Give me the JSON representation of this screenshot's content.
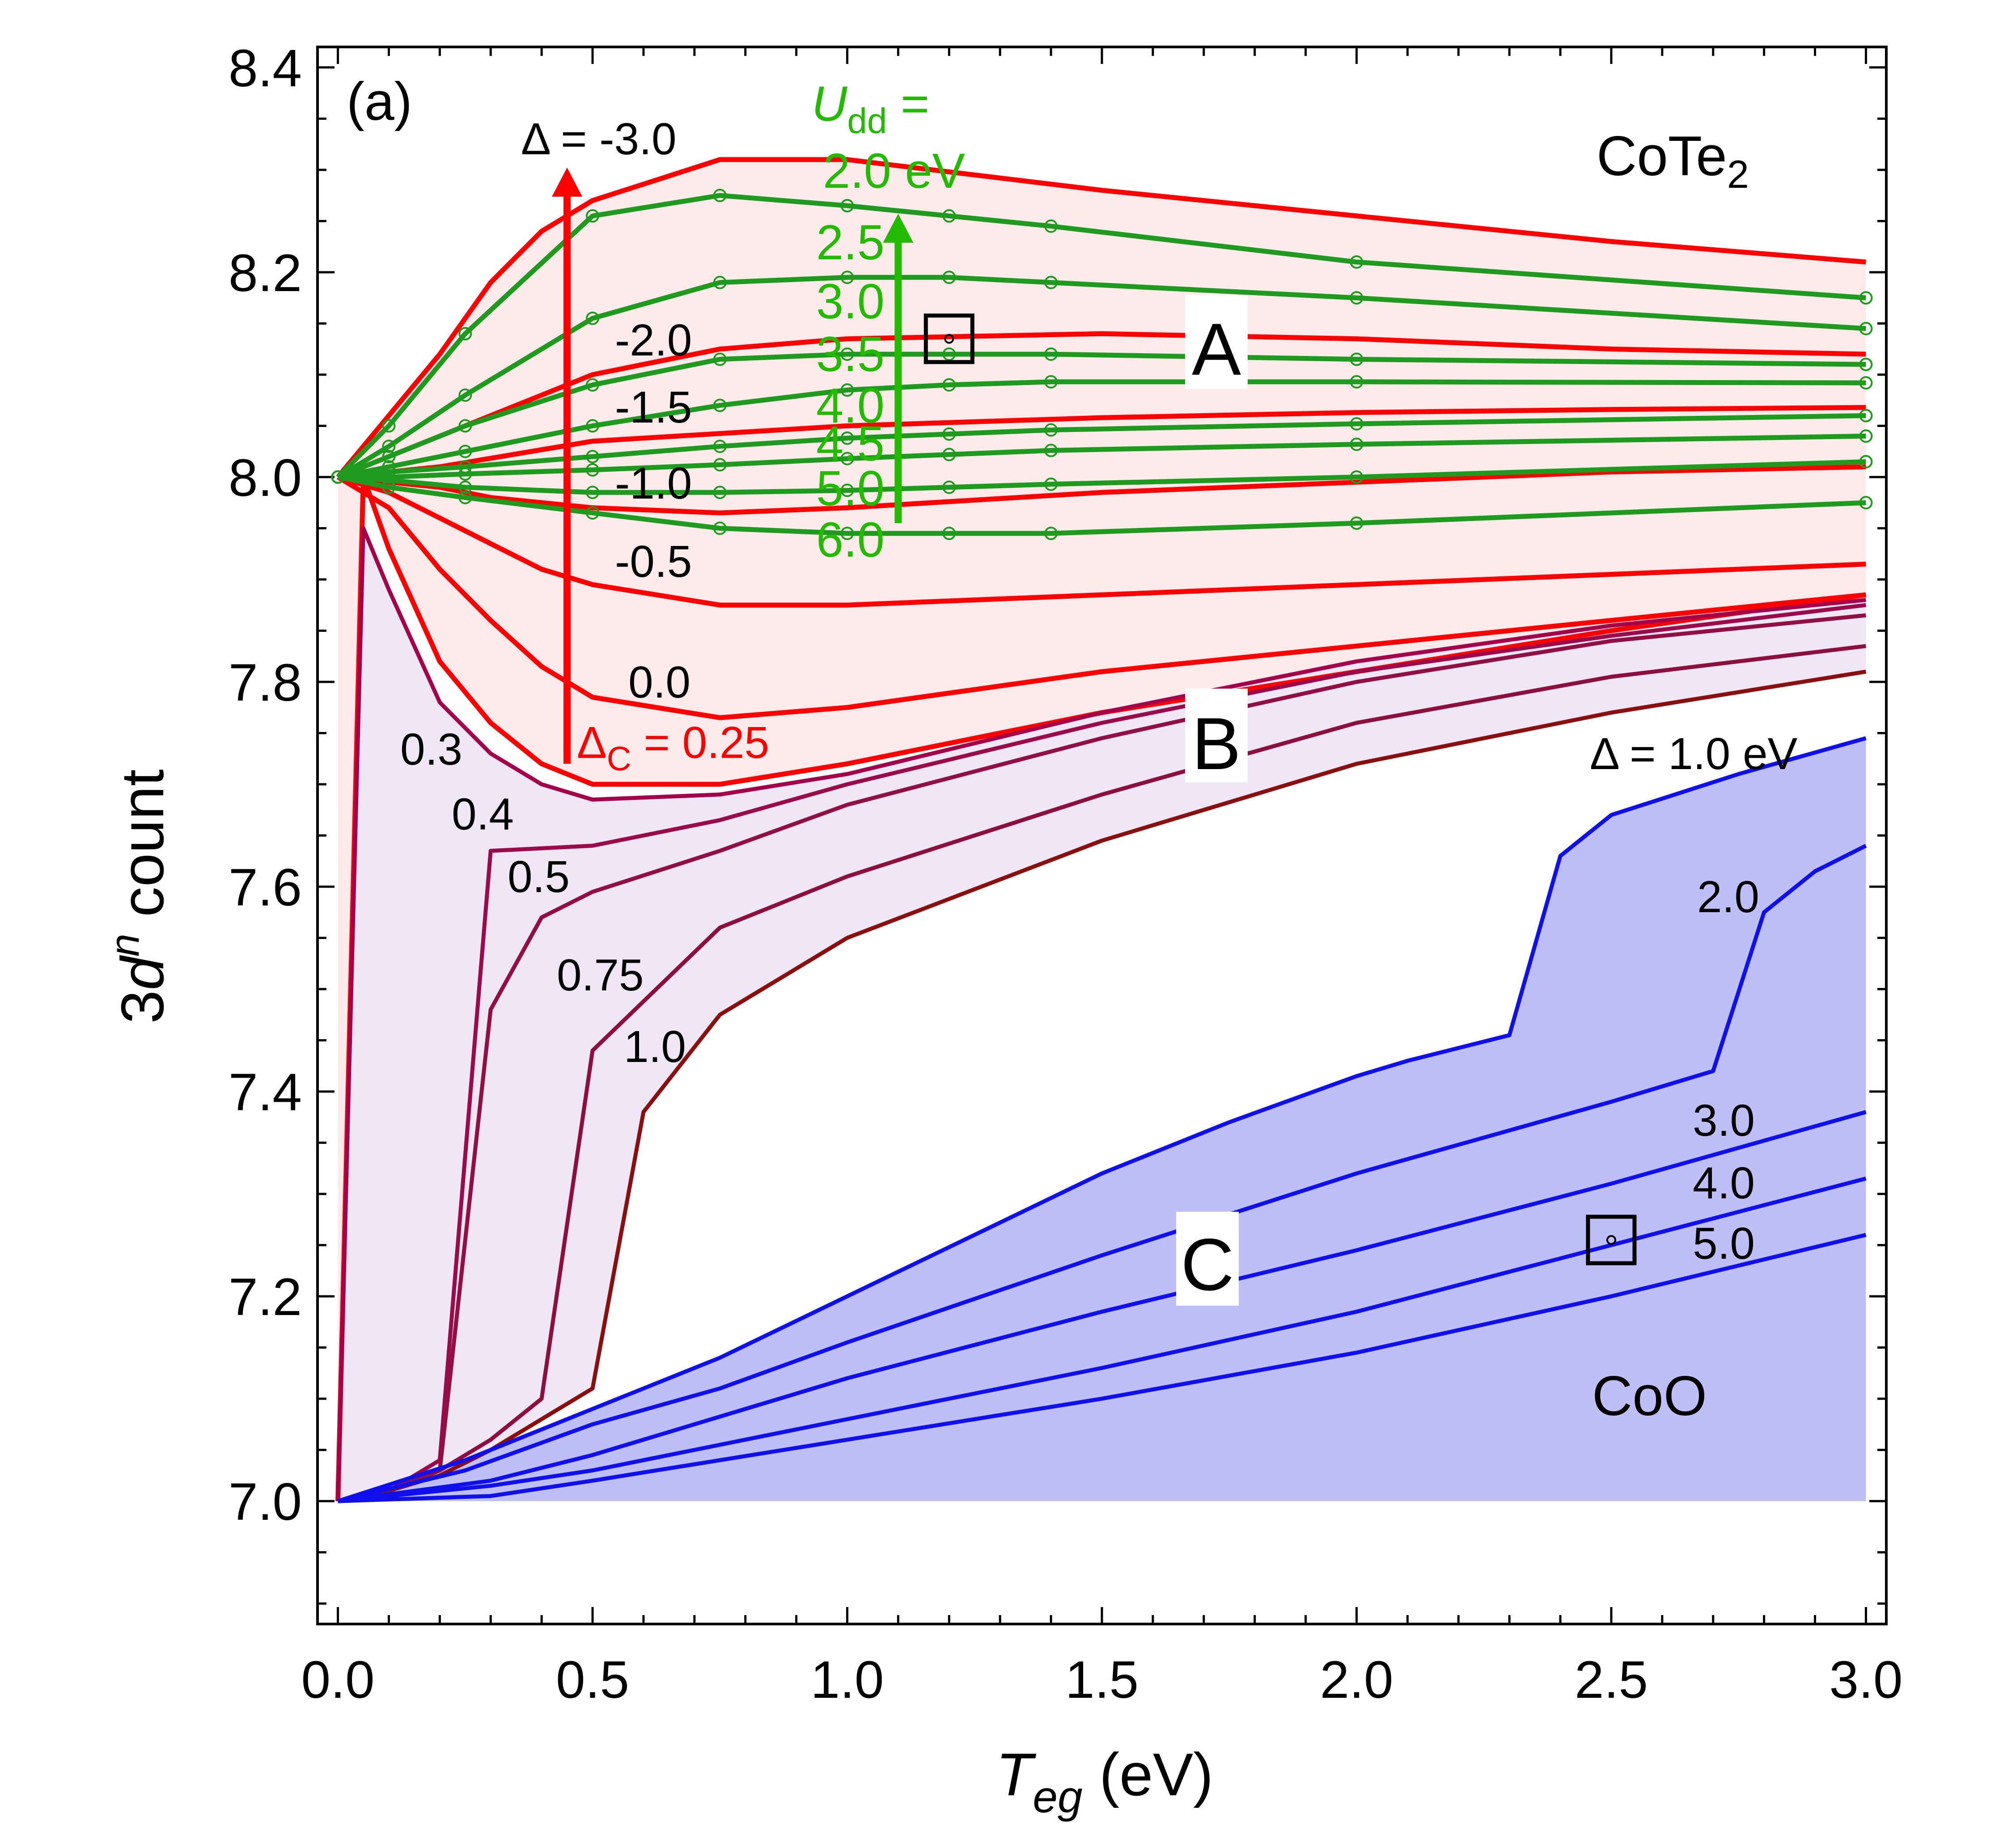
{
  "chart_data": {
    "type": "line",
    "panel_label": "(a)",
    "xlabel_main": "T",
    "xlabel_sub": "eg",
    "xlabel_unit": " (eV)",
    "ylabel_pre": "3",
    "ylabel_d": "d",
    "ylabel_sup": "n",
    "ylabel_post": " count",
    "xlim": [
      -0.04,
      3.04
    ],
    "ylim": [
      6.88,
      8.42
    ],
    "xticks": [
      0.0,
      0.5,
      1.0,
      1.5,
      2.0,
      2.5,
      3.0
    ],
    "xtick_labels": [
      "0.0",
      "0.5",
      "1.0",
      "1.5",
      "2.0",
      "2.5",
      "3.0"
    ],
    "yticks": [
      7.0,
      7.2,
      7.4,
      7.6,
      7.8,
      8.0,
      8.2,
      8.4
    ],
    "ytick_labels": [
      "7.0",
      "7.2",
      "7.4",
      "7.6",
      "7.8",
      "8.0",
      "8.2",
      "8.4"
    ],
    "materials": {
      "top": "CoTe",
      "top_sub": "2",
      "bottom": "CoO"
    },
    "regions": [
      "A",
      "B",
      "C"
    ],
    "region_A_series": [
      {
        "name": "Δ = -3.0",
        "x": [
          0,
          0.1,
          0.2,
          0.3,
          0.4,
          0.5,
          0.75,
          1.0,
          1.5,
          2.0,
          2.5,
          3.0
        ],
        "y": [
          8.0,
          8.06,
          8.12,
          8.19,
          8.24,
          8.27,
          8.31,
          8.31,
          8.28,
          8.255,
          8.23,
          8.21
        ]
      },
      {
        "name": "-2.0",
        "x": [
          0,
          0.2,
          0.5,
          0.75,
          1.0,
          1.5,
          2.0,
          2.5,
          3.0
        ],
        "y": [
          8.0,
          8.04,
          8.1,
          8.125,
          8.135,
          8.14,
          8.135,
          8.125,
          8.12
        ]
      },
      {
        "name": "-1.5",
        "x": [
          0,
          0.2,
          0.5,
          1.0,
          1.5,
          2.0,
          2.5,
          3.0
        ],
        "y": [
          8.0,
          8.01,
          8.035,
          8.05,
          8.058,
          8.063,
          8.066,
          8.068
        ]
      },
      {
        "name": "-1.0",
        "x": [
          0,
          0.1,
          0.2,
          0.3,
          0.4,
          0.5,
          0.75,
          1.0,
          1.5,
          2.0,
          2.5,
          3.0
        ],
        "y": [
          8.0,
          7.995,
          7.99,
          7.98,
          7.975,
          7.97,
          7.965,
          7.97,
          7.985,
          7.995,
          8.005,
          8.01
        ]
      },
      {
        "name": "-0.5",
        "x": [
          0,
          0.1,
          0.2,
          0.3,
          0.4,
          0.5,
          0.75,
          1.0,
          1.5,
          2.0,
          2.5,
          3.0
        ],
        "y": [
          8.0,
          7.985,
          7.96,
          7.935,
          7.91,
          7.895,
          7.875,
          7.875,
          7.885,
          7.895,
          7.905,
          7.915
        ]
      },
      {
        "name": "0.0",
        "x": [
          0,
          0.1,
          0.2,
          0.3,
          0.4,
          0.5,
          0.75,
          1.0,
          1.5,
          2.0,
          2.5,
          3.0
        ],
        "y": [
          8.0,
          7.97,
          7.91,
          7.86,
          7.815,
          7.785,
          7.765,
          7.775,
          7.81,
          7.835,
          7.86,
          7.885
        ]
      },
      {
        "name": "Δ_C = 0.25",
        "x": [
          0,
          0.05,
          0.1,
          0.2,
          0.3,
          0.4,
          0.5,
          0.75,
          1.0,
          1.5,
          2.0,
          2.5,
          3.0
        ],
        "y": [
          7.0,
          8.0,
          7.93,
          7.82,
          7.76,
          7.72,
          7.7,
          7.7,
          7.72,
          7.77,
          7.81,
          7.85,
          7.885
        ]
      }
    ],
    "region_B_series": [
      {
        "name": "0.3",
        "x": [
          0,
          0.05,
          0.1,
          0.2,
          0.3,
          0.4,
          0.5,
          0.75,
          1.0,
          1.5,
          2.0,
          2.5,
          3.0
        ],
        "y": [
          7.0,
          7.95,
          7.89,
          7.78,
          7.73,
          7.7,
          7.685,
          7.69,
          7.71,
          7.77,
          7.82,
          7.855,
          7.88
        ]
      },
      {
        "name": "0.4",
        "x": [
          0,
          0.1,
          0.2,
          0.3,
          0.5,
          0.75,
          1.0,
          1.5,
          2.0,
          2.5,
          3.0
        ],
        "y": [
          7.0,
          7.01,
          7.04,
          7.635,
          7.64,
          7.665,
          7.7,
          7.76,
          7.81,
          7.845,
          7.875
        ]
      },
      {
        "name": "0.5",
        "x": [
          0,
          0.1,
          0.2,
          0.3,
          0.4,
          0.5,
          0.75,
          1.0,
          1.5,
          2.0,
          2.5,
          3.0
        ],
        "y": [
          7.0,
          7.01,
          7.03,
          7.48,
          7.57,
          7.595,
          7.635,
          7.68,
          7.745,
          7.8,
          7.84,
          7.865
        ]
      },
      {
        "name": "0.75",
        "x": [
          0,
          0.1,
          0.2,
          0.3,
          0.4,
          0.5,
          0.75,
          1.0,
          1.5,
          2.0,
          2.5,
          3.0
        ],
        "y": [
          7.0,
          7.01,
          7.03,
          7.06,
          7.1,
          7.44,
          7.56,
          7.61,
          7.69,
          7.76,
          7.805,
          7.835
        ]
      },
      {
        "name": "1.0",
        "x": [
          0,
          0.1,
          0.2,
          0.3,
          0.4,
          0.5,
          0.6,
          0.75,
          1.0,
          1.5,
          2.0,
          2.5,
          3.0
        ],
        "y": [
          7.0,
          7.01,
          7.025,
          7.05,
          7.08,
          7.11,
          7.38,
          7.475,
          7.55,
          7.645,
          7.72,
          7.77,
          7.81
        ]
      }
    ],
    "region_C_series": [
      {
        "name": "Δ = 1.0 eV",
        "x": [
          0,
          0.25,
          0.5,
          0.75,
          1.0,
          1.25,
          1.5,
          1.75,
          2.0,
          2.1,
          2.3,
          2.4,
          2.5,
          2.75,
          3.0
        ],
        "y": [
          7.0,
          7.04,
          7.09,
          7.14,
          7.2,
          7.26,
          7.32,
          7.37,
          7.415,
          7.43,
          7.455,
          7.63,
          7.67,
          7.71,
          7.745
        ]
      },
      {
        "name": "2.0",
        "x": [
          0,
          0.25,
          0.5,
          0.75,
          1.0,
          1.5,
          2.0,
          2.5,
          2.7,
          2.8,
          2.9,
          3.0
        ],
        "y": [
          7.0,
          7.03,
          7.075,
          7.11,
          7.155,
          7.24,
          7.32,
          7.39,
          7.42,
          7.575,
          7.615,
          7.64
        ]
      },
      {
        "name": "3.0",
        "x": [
          0,
          0.3,
          0.5,
          1.0,
          1.5,
          2.0,
          2.5,
          3.0
        ],
        "y": [
          7.0,
          7.02,
          7.045,
          7.12,
          7.185,
          7.245,
          7.31,
          7.38
        ]
      },
      {
        "name": "4.0",
        "x": [
          0,
          0.3,
          0.5,
          1.0,
          1.5,
          2.0,
          2.5,
          3.0
        ],
        "y": [
          7.0,
          7.015,
          7.03,
          7.08,
          7.13,
          7.185,
          7.25,
          7.315
        ]
      },
      {
        "name": "5.0",
        "x": [
          0,
          0.3,
          0.5,
          1.0,
          1.5,
          2.0,
          2.5,
          3.0
        ],
        "y": [
          7.0,
          7.005,
          7.02,
          7.06,
          7.1,
          7.145,
          7.2,
          7.26
        ]
      }
    ],
    "udd_series": [
      {
        "name": "2.0 eV",
        "x": [
          0,
          0.1,
          0.25,
          0.5,
          0.75,
          1.0,
          1.2,
          1.4,
          2.0,
          3.0
        ],
        "y": [
          8.0,
          8.05,
          8.14,
          8.255,
          8.275,
          8.265,
          8.255,
          8.245,
          8.21,
          8.175
        ]
      },
      {
        "name": "2.5",
        "x": [
          0,
          0.1,
          0.25,
          0.5,
          0.75,
          1.0,
          1.2,
          1.4,
          2.0,
          3.0
        ],
        "y": [
          8.0,
          8.03,
          8.08,
          8.155,
          8.19,
          8.195,
          8.195,
          8.19,
          8.175,
          8.145
        ]
      },
      {
        "name": "3.0",
        "x": [
          0,
          0.1,
          0.25,
          0.5,
          0.75,
          1.0,
          1.2,
          1.4,
          2.0,
          3.0
        ],
        "y": [
          8.0,
          8.02,
          8.05,
          8.09,
          8.115,
          8.12,
          8.12,
          8.12,
          8.115,
          8.11
        ]
      },
      {
        "name": "3.5",
        "x": [
          0,
          0.1,
          0.25,
          0.5,
          0.75,
          1.0,
          1.2,
          1.4,
          2.0,
          3.0
        ],
        "y": [
          8.0,
          8.01,
          8.025,
          8.05,
          8.07,
          8.085,
          8.09,
          8.093,
          8.093,
          8.092
        ]
      },
      {
        "name": "4.0",
        "x": [
          0,
          0.1,
          0.25,
          0.5,
          0.75,
          1.0,
          1.2,
          1.4,
          2.0,
          3.0
        ],
        "y": [
          8.0,
          8.005,
          8.01,
          8.02,
          8.03,
          8.038,
          8.042,
          8.046,
          8.052,
          8.06
        ]
      },
      {
        "name": "4.5",
        "x": [
          0,
          0.1,
          0.25,
          0.5,
          0.75,
          1.0,
          1.2,
          1.4,
          2.0,
          3.0
        ],
        "y": [
          8.0,
          8.0,
          8.003,
          8.007,
          8.012,
          8.018,
          8.022,
          8.026,
          8.032,
          8.04
        ]
      },
      {
        "name": "5.0",
        "x": [
          0,
          0.1,
          0.25,
          0.5,
          0.75,
          1.0,
          1.2,
          1.4,
          2.0,
          3.0
        ],
        "y": [
          8.0,
          7.997,
          7.99,
          7.985,
          7.985,
          7.987,
          7.99,
          7.993,
          8.0,
          8.015
        ]
      },
      {
        "name": "6.0",
        "x": [
          0,
          0.1,
          0.25,
          0.5,
          0.75,
          1.0,
          1.2,
          1.4,
          2.0,
          3.0
        ],
        "y": [
          8.0,
          7.99,
          7.98,
          7.965,
          7.95,
          7.945,
          7.945,
          7.945,
          7.955,
          7.975
        ]
      }
    ],
    "arrows": {
      "delta": {
        "label": "Δ = -3.0",
        "x": 0.45,
        "y_from": 7.72,
        "y_to": 8.3
      },
      "udd": {
        "label_main": "U",
        "label_sub": "dd",
        "label_suffix": " =",
        "x": 1.1,
        "y_from": 7.955,
        "y_to": 8.255
      }
    },
    "markers": [
      {
        "name": "CoTe2 marker",
        "x": 1.2,
        "y": 8.135
      },
      {
        "name": "CoO marker",
        "x": 2.5,
        "y": 7.255
      }
    ]
  },
  "labels": {
    "delta_A": [
      "Δ = -3.0",
      "-2.0",
      "-1.5",
      "-1.0",
      "-0.5",
      "0.0"
    ],
    "delta_c_main": "Δ",
    "delta_c_sub": "C",
    "delta_c_value": " = 0.25",
    "delta_B": [
      "0.3",
      "0.4",
      "0.5",
      "0.75",
      "1.0"
    ],
    "delta_C": [
      "Δ = 1.0 eV",
      "2.0",
      "3.0",
      "4.0",
      "5.0"
    ],
    "udd_values": [
      "2.0 eV",
      "2.5",
      "3.0",
      "3.5",
      "4.0",
      "4.5",
      "5.0",
      "6.0"
    ]
  },
  "colors": {
    "red": "#ff0000",
    "green": "#1e9a1e",
    "green_text": "#22bb00",
    "blue": "#1010ee",
    "maroon_shades": [
      "#a5004a",
      "#9b0a4a",
      "#920f45",
      "#8c0f3e",
      "#8a1010"
    ],
    "fill_A": "#fdeaea",
    "fill_B": "#efe6f6",
    "fill_C": "#bfbff8"
  }
}
